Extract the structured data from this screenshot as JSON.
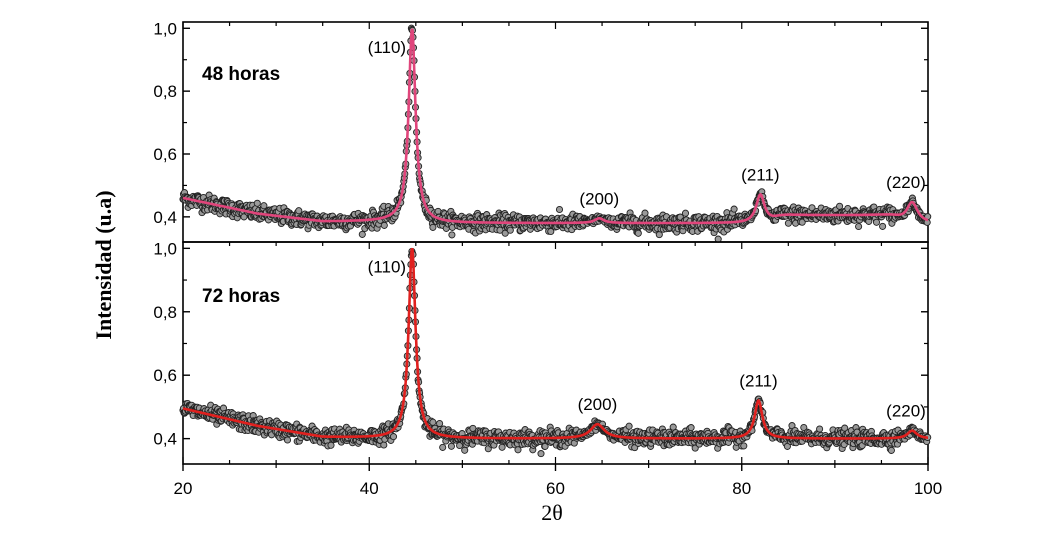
{
  "chart_data": {
    "type": "scatter",
    "ylabel": "Intensidad (u.a)",
    "xlabel": "2θ",
    "xlim": [
      20,
      100
    ],
    "xticks": [
      "20",
      "40",
      "60",
      "80",
      "100"
    ],
    "grid": false,
    "panels": [
      {
        "label": "48 horas",
        "ylim": [
          0.32,
          1.02
        ],
        "yticks": [
          "0,4",
          "0,6",
          "0,8",
          "1,0"
        ],
        "fit_color": "#e0457b",
        "marker_color": "#9a9a9a",
        "baseline": [
          [
            20,
            0.46
          ],
          [
            28,
            0.41
          ],
          [
            35,
            0.385
          ],
          [
            43,
            0.385
          ],
          [
            47,
            0.38
          ],
          [
            100,
            0.38
          ]
        ],
        "humps": [
          [
            100,
            0.01,
            0.01
          ]
        ],
        "peaks": [
          {
            "x": 44.6,
            "height": 0.615,
            "width": 0.45,
            "label": "(110)"
          },
          {
            "x": 64.7,
            "height": 0.015,
            "width": 0.6,
            "label": "(200)"
          },
          {
            "x": 82.0,
            "height": 0.09,
            "width": 0.55,
            "label": "(211)"
          },
          {
            "x": 98.3,
            "height": 0.065,
            "width": 0.7,
            "label": "(220)"
          }
        ],
        "plateaus": [
          {
            "from": 83.5,
            "to": 97.0,
            "level": 0.405
          }
        ]
      },
      {
        "label": "72 horas",
        "ylim": [
          0.32,
          1.02
        ],
        "yticks": [
          "0,4",
          "0,6",
          "0,8",
          "1,0"
        ],
        "fit_color": "#e0201e",
        "marker_color": "#9a9a9a",
        "baseline": [
          [
            20,
            0.495
          ],
          [
            28,
            0.44
          ],
          [
            35,
            0.405
          ],
          [
            43,
            0.4
          ],
          [
            100,
            0.4
          ]
        ],
        "humps": [],
        "peaks": [
          {
            "x": 44.6,
            "height": 0.6,
            "width": 0.45,
            "label": "(110)"
          },
          {
            "x": 64.5,
            "height": 0.045,
            "width": 0.9,
            "label": "(200)"
          },
          {
            "x": 81.8,
            "height": 0.12,
            "width": 0.5,
            "label": "(211)"
          },
          {
            "x": 98.3,
            "height": 0.025,
            "width": 0.6,
            "label": "(220)"
          }
        ],
        "plateaus": []
      }
    ]
  }
}
